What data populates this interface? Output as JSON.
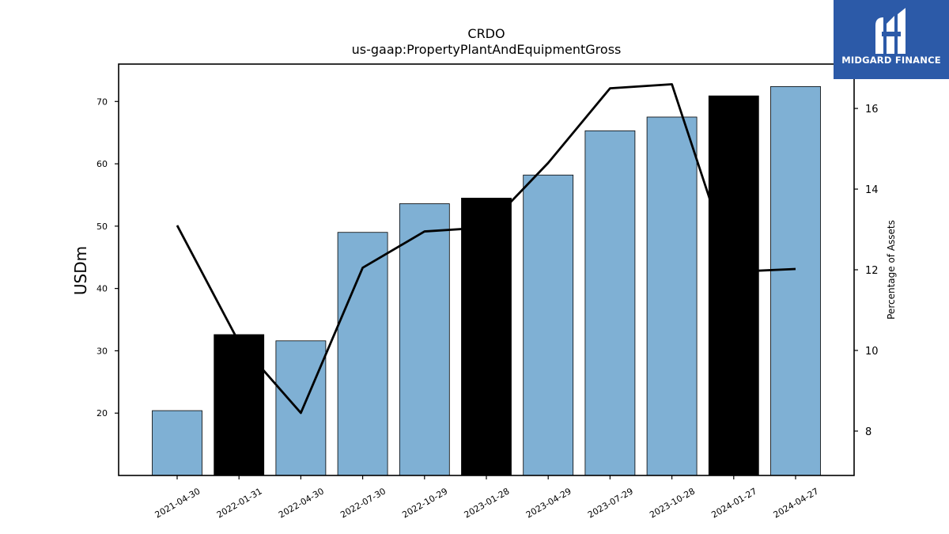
{
  "chart_data": {
    "type": "bar",
    "title": "CRDO",
    "subtitle": "us-gaap:PropertyPlantAndEquipmentGross",
    "ylabel": "USDm",
    "y2label": "Percentage of Assets",
    "categories": [
      "2021-04-30",
      "2022-01-31",
      "2022-04-30",
      "2022-07-30",
      "2022-10-29",
      "2023-01-28",
      "2023-04-29",
      "2023-07-29",
      "2023-10-28",
      "2024-01-27",
      "2024-04-27"
    ],
    "series": [
      {
        "type": "bar",
        "values": [
          20.4,
          32.6,
          31.6,
          49.0,
          53.6,
          54.5,
          58.2,
          65.3,
          67.5,
          70.9,
          72.4
        ],
        "colors": [
          "#7fb0d4",
          "#000000",
          "#7fb0d4",
          "#7fb0d4",
          "#7fb0d4",
          "#000000",
          "#7fb0d4",
          "#7fb0d4",
          "#7fb0d4",
          "#000000",
          "#7fb0d4"
        ]
      },
      {
        "type": "line",
        "axis": "right",
        "color": "#000000",
        "values": [
          13.1,
          10.2,
          8.45,
          12.05,
          12.95,
          13.05,
          14.65,
          16.5,
          16.6,
          11.95,
          12.02
        ]
      }
    ],
    "ylim": [
      10,
      76
    ],
    "yticks": [
      20,
      30,
      40,
      50,
      60,
      70
    ],
    "y2lim": [
      6.9,
      17.1
    ],
    "y2ticks": [
      8,
      10,
      12,
      14,
      16
    ],
    "grid": false,
    "colors": {
      "bar_default": "#7fb0d4",
      "bar_highlight": "#000000",
      "line": "#000000"
    }
  },
  "logo": {
    "text": "MIDGARD FINANCE",
    "background": "#2c5aa8"
  }
}
